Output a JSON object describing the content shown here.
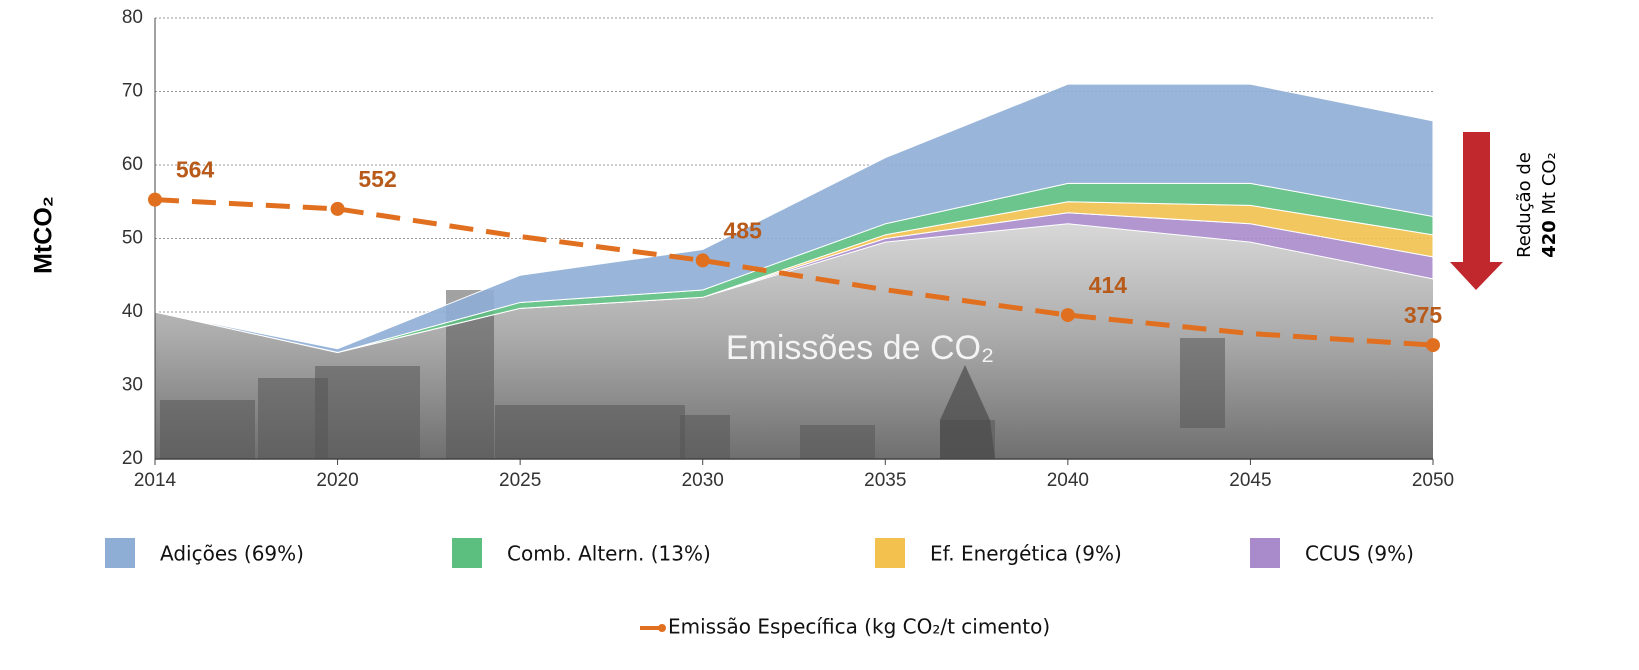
{
  "chart_data": {
    "type": "stacked-area",
    "y_label": "MtCO₂",
    "categories": [
      "2014",
      "2020",
      "2025",
      "2030",
      "2035",
      "2040",
      "2045",
      "2050"
    ],
    "ylim": [
      20,
      80
    ],
    "yticks": [
      20,
      30,
      40,
      50,
      60,
      70,
      80
    ],
    "y2lim": [
      227,
      800
    ],
    "grid": true,
    "legend": "bottom",
    "series": [
      {
        "name": "Emissões de CO₂",
        "color": "#9a9a9a",
        "values": [
          40,
          34.5,
          40.5,
          42,
          49.5,
          52,
          49.5,
          44.5
        ]
      },
      {
        "name": "CCUS (9%)",
        "color": "#a98bcb",
        "values": [
          0,
          0,
          0,
          0,
          0.5,
          1.5,
          2.5,
          3
        ]
      },
      {
        "name": "Ef. Energética (9%)",
        "color": "#f2c14e",
        "values": [
          0,
          0,
          0,
          0,
          0.5,
          1.5,
          2.5,
          3
        ]
      },
      {
        "name": "Comb. Altern. (13%)",
        "color": "#5cbf7f",
        "values": [
          0,
          0,
          0.8,
          1,
          1.5,
          2.5,
          3,
          2.5
        ]
      },
      {
        "name": "Adições (69%)",
        "color": "#8eaed6",
        "values": [
          0,
          0.5,
          3.7,
          5.5,
          9,
          13.5,
          13.5,
          13
        ]
      },
      {
        "name": "Emissão Específica (kg CO₂/t cimento)",
        "color": "#e07020",
        "axis": "y2",
        "type": "line",
        "values": [
          564,
          552,
          516,
          485,
          447,
          414,
          390,
          375
        ],
        "value_labels": [
          "564",
          "552",
          null,
          "485",
          null,
          "414",
          null,
          "375"
        ]
      }
    ],
    "annotation": [
      "Redução de",
      "420",
      "Mt CO₂"
    ]
  }
}
